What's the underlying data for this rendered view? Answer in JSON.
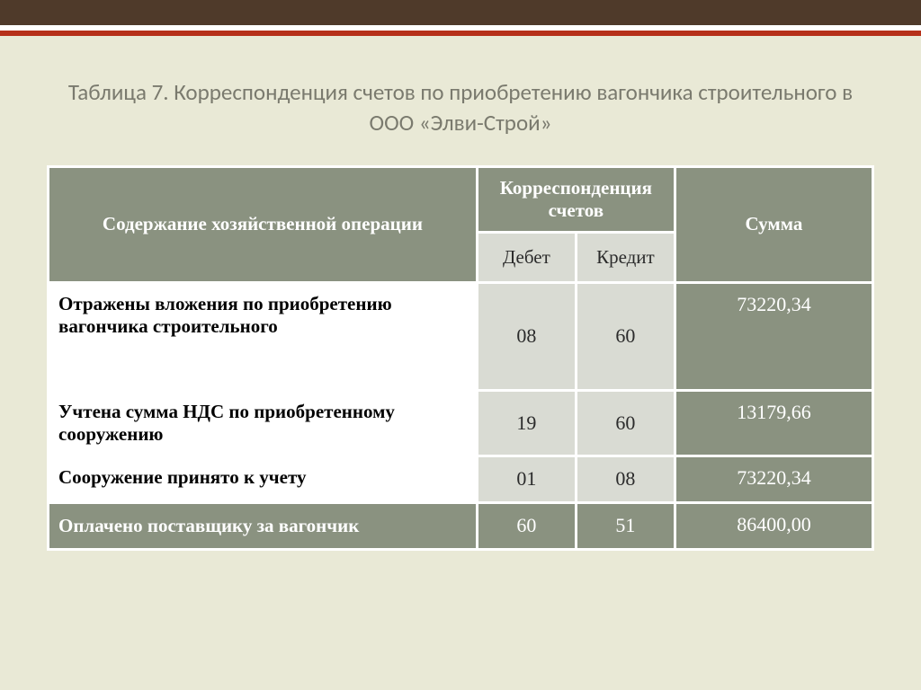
{
  "colors": {
    "page_bg": "#e9e9d6",
    "top_bar": "#4f3a2a",
    "accent": "#b6301a",
    "header_green": "#8a9280",
    "header_text": "#ffffff",
    "sub_bg": "#d9dbd3",
    "sub_text": "#2b2b2b",
    "title_color": "#7a7a6e",
    "cell_border": "#ffffff"
  },
  "title": "Таблица 7. Корреспонденция счетов  по приобретению вагончика строительного в ООО «Элви-Строй»",
  "table": {
    "type": "table",
    "columns": {
      "operation": "Содержание хозяйственной операции",
      "correspondence": "Корреспонденция счетов",
      "debit": "Дебет",
      "credit": "Кредит",
      "sum": "Сумма"
    },
    "col_widths_pct": [
      52,
      12,
      12,
      24
    ],
    "rows": [
      {
        "operation": "Отражены вложения по приобретению вагончика строительного",
        "debit": "08",
        "credit": "60",
        "sum": "73220,34",
        "row_style": "white",
        "height": "tall"
      },
      {
        "operation": "Учтена сумма НДС по приобретенному сооружению",
        "debit": "19",
        "credit": "60",
        "sum": "13179,66",
        "row_style": "white",
        "height": "med"
      },
      {
        "operation": "Сооружение принято к учету",
        "debit": "01",
        "credit": "08",
        "sum": "73220,34",
        "row_style": "white",
        "height": "sm"
      },
      {
        "operation": "Оплачено поставщику за вагончик",
        "debit": "60",
        "credit": "51",
        "sum": "86400,00",
        "row_style": "green",
        "height": "sm"
      }
    ]
  },
  "typography": {
    "title_font": "Calibri",
    "title_size_pt": 19,
    "table_font": "Times New Roman",
    "table_size_pt": 16
  }
}
